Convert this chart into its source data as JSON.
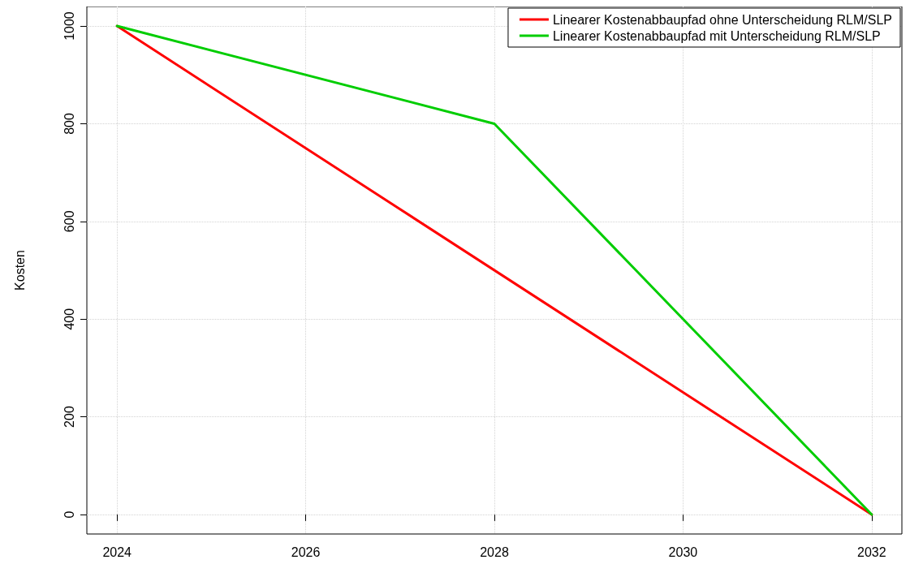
{
  "chart_data": {
    "type": "line",
    "ylabel": "Kosten",
    "xlim": [
      2023.68,
      2032.32
    ],
    "xticks": [
      2024,
      2026,
      2028,
      2030,
      2032
    ],
    "ylim": [
      -40,
      1040
    ],
    "yticks": [
      0,
      200,
      400,
      600,
      800,
      1000
    ],
    "grid": true,
    "legend": "top right",
    "marker": "none",
    "line_style": "solid",
    "series": [
      {
        "name": "Linearer Kostenabbaupfad ohne Unterscheidung RLM/SLP",
        "color": "#ff0000",
        "x": [
          2024,
          2032
        ],
        "values": [
          1000,
          0
        ]
      },
      {
        "name": "Linearer Kostenabbaupfad mit Unterscheidung RLM/SLP",
        "color": "#00cd00",
        "x": [
          2024,
          2028,
          2032
        ],
        "values": [
          1000,
          800,
          0
        ]
      }
    ]
  }
}
